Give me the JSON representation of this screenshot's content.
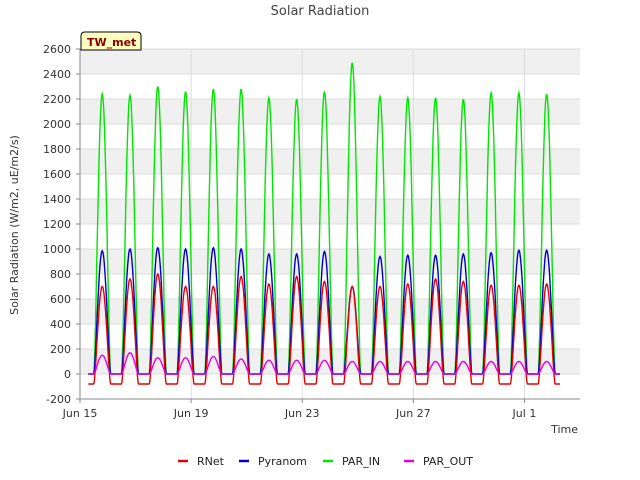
{
  "chart_data": {
    "type": "line",
    "title": "Solar Radiation",
    "xlabel": "Time",
    "ylabel": "Solar Radiation (W/m2, uE/m2/s)",
    "badge": "TW_met",
    "ylim": [
      -200,
      2600
    ],
    "yticks": [
      -200,
      0,
      200,
      400,
      600,
      800,
      1000,
      1200,
      1400,
      1600,
      1800,
      2000,
      2200,
      2400,
      2600
    ],
    "xlim": [
      "2023-06-15",
      "2023-07-03"
    ],
    "xticks": [
      {
        "label": "Jun 15",
        "day": 0
      },
      {
        "label": "Jun 19",
        "day": 4
      },
      {
        "label": "Jun 23",
        "day": 8
      },
      {
        "label": "Jun 27",
        "day": 12
      },
      {
        "label": "Jul 1",
        "day": 16
      }
    ],
    "grid": true,
    "legend_position": "bottom",
    "series": [
      {
        "name": "RNet",
        "color": "#e60000",
        "daily_peak": [
          700,
          760,
          800,
          700,
          700,
          780,
          720,
          780,
          740,
          700,
          700,
          720,
          760,
          740,
          710,
          710,
          720
        ],
        "night_value": -80
      },
      {
        "name": "Pyranom",
        "color": "#0000cc",
        "daily_peak": [
          985,
          1000,
          1010,
          1000,
          1010,
          1000,
          960,
          960,
          980,
          700,
          940,
          950,
          950,
          960,
          970,
          990,
          990
        ],
        "night_value": 0
      },
      {
        "name": "PAR_IN",
        "color": "#00e600",
        "daily_peak": [
          2240,
          2230,
          2300,
          2260,
          2280,
          2280,
          2210,
          2200,
          2260,
          2490,
          2220,
          2210,
          2210,
          2200,
          2250,
          2250,
          2240
        ],
        "night_value": 0
      },
      {
        "name": "PAR_OUT",
        "color": "#e600e6",
        "daily_peak": [
          150,
          170,
          130,
          130,
          140,
          120,
          110,
          110,
          110,
          100,
          100,
          100,
          100,
          100,
          100,
          100,
          100
        ],
        "night_value": 0
      }
    ]
  }
}
